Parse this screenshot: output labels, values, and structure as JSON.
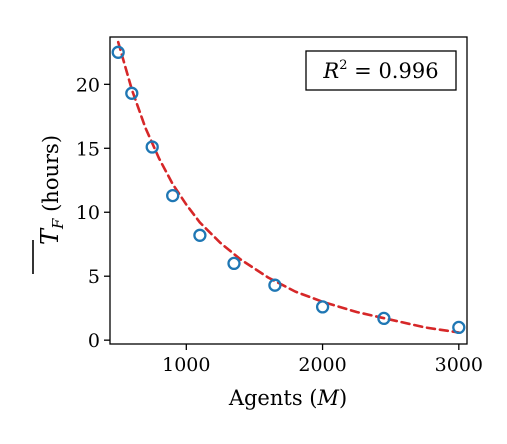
{
  "chart_data": {
    "type": "scatter",
    "xlabel": {
      "prefix": "Agents (",
      "var": "M",
      "suffix": ")"
    },
    "ylabel": {
      "symbol": "T",
      "subscript": "F",
      "suffix": " (hours)"
    },
    "x_ticks": [
      1000,
      2000,
      3000
    ],
    "y_ticks": [
      0,
      5,
      10,
      15,
      20
    ],
    "xlim": [
      440,
      3060
    ],
    "ylim": [
      -0.3,
      23.7
    ],
    "grid": false,
    "annotation": {
      "label": "R",
      "exponent": "2",
      "value": " = 0.996",
      "position": "top-right"
    },
    "series": [
      {
        "type": "scatter",
        "marker": "open-circle",
        "color": "#1f77b4",
        "x": [
          500,
          600,
          750,
          900,
          1100,
          1350,
          1650,
          2000,
          2450,
          3000
        ],
        "y": [
          22.5,
          19.3,
          15.1,
          11.3,
          8.2,
          6.0,
          4.3,
          2.6,
          1.7,
          1.0
        ]
      },
      {
        "type": "line",
        "style": "dashed",
        "color": "#d62728",
        "x": [
          500,
          600,
          700,
          800,
          900,
          1000,
          1100,
          1250,
          1400,
          1600,
          1800,
          2000,
          2250,
          2500,
          2750,
          3000
        ],
        "y": [
          23.3,
          19.6,
          16.6,
          14.2,
          12.2,
          10.6,
          9.2,
          7.6,
          6.3,
          4.9,
          3.8,
          3.0,
          2.2,
          1.6,
          1.0,
          0.6
        ]
      }
    ]
  }
}
